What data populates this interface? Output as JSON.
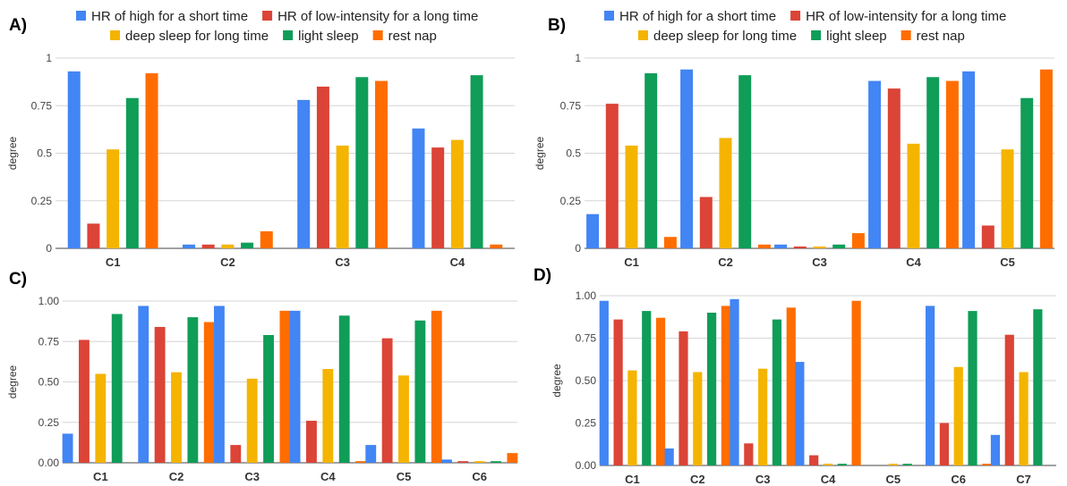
{
  "colors": {
    "HR of high for a short time": "#4285f4",
    "HR of low-intensity for a long time": "#db4437",
    "deep sleep for long time": "#f4b400",
    "light sleep": "#0f9d58",
    "rest nap": "#ff6d00"
  },
  "chart_data": [
    {
      "panel": "A)",
      "type": "bar",
      "ylabel": "degree",
      "ylim": [
        0,
        1
      ],
      "yticks": [
        "0",
        "0.25",
        "0.5",
        "0.75",
        "1"
      ],
      "grid": true,
      "legend": "top",
      "categories": [
        "C1",
        "C2",
        "C3",
        "C4"
      ],
      "series": [
        {
          "name": "HR of high for a short time",
          "values": [
            0.93,
            0.02,
            0.78,
            0.63
          ]
        },
        {
          "name": "HR of low-intensity for a long time",
          "values": [
            0.13,
            0.02,
            0.85,
            0.53
          ]
        },
        {
          "name": "deep sleep for long time",
          "values": [
            0.52,
            0.02,
            0.54,
            0.57
          ]
        },
        {
          "name": "light sleep",
          "values": [
            0.79,
            0.03,
            0.9,
            0.91
          ]
        },
        {
          "name": "rest nap",
          "values": [
            0.92,
            0.09,
            0.88,
            0.02
          ]
        }
      ]
    },
    {
      "panel": "B)",
      "type": "bar",
      "ylabel": "degree",
      "ylim": [
        0,
        1
      ],
      "yticks": [
        "0",
        "0.25",
        "0.5",
        "0.75",
        "1"
      ],
      "grid": true,
      "legend": "top",
      "categories": [
        "C1",
        "C2",
        "C3",
        "C4",
        "C5"
      ],
      "series": [
        {
          "name": "HR of high for a short time",
          "values": [
            0.18,
            0.94,
            0.02,
            0.88,
            0.93
          ]
        },
        {
          "name": "HR of low-intensity for a long time",
          "values": [
            0.76,
            0.27,
            0.01,
            0.84,
            0.12
          ]
        },
        {
          "name": "deep sleep for long time",
          "values": [
            0.54,
            0.58,
            0.01,
            0.55,
            0.52
          ]
        },
        {
          "name": "light sleep",
          "values": [
            0.92,
            0.91,
            0.02,
            0.9,
            0.79
          ]
        },
        {
          "name": "rest nap",
          "values": [
            0.06,
            0.02,
            0.08,
            0.88,
            0.94
          ]
        }
      ]
    },
    {
      "panel": "C)",
      "type": "bar",
      "ylabel": "degree",
      "ylim": [
        0,
        1
      ],
      "yticks": [
        "0.00",
        "0.25",
        "0.50",
        "0.75",
        "1.00"
      ],
      "grid": true,
      "categories": [
        "C1",
        "C2",
        "C3",
        "C4",
        "C5",
        "C6"
      ],
      "series": [
        {
          "name": "HR of high for a short time",
          "values": [
            0.18,
            0.97,
            0.97,
            0.94,
            0.11,
            0.02
          ]
        },
        {
          "name": "HR of low-intensity for a long time",
          "values": [
            0.76,
            0.84,
            0.11,
            0.26,
            0.77,
            0.01
          ]
        },
        {
          "name": "deep sleep for long time",
          "values": [
            0.55,
            0.56,
            0.52,
            0.58,
            0.54,
            0.01
          ]
        },
        {
          "name": "light sleep",
          "values": [
            0.92,
            0.9,
            0.79,
            0.91,
            0.88,
            0.01
          ]
        },
        {
          "name": "rest nap",
          "values": [
            0.0,
            0.87,
            0.94,
            0.01,
            0.94,
            0.06
          ]
        }
      ]
    },
    {
      "panel": "D)",
      "type": "bar",
      "ylabel": "degree",
      "ylim": [
        0,
        1
      ],
      "yticks": [
        "0.00",
        "0.25",
        "0.50",
        "0.75",
        "1.00"
      ],
      "grid": true,
      "categories": [
        "C1",
        "C2",
        "C3",
        "C4",
        "C5",
        "C6",
        "C7"
      ],
      "series": [
        {
          "name": "HR of high for a short time",
          "values": [
            0.97,
            0.1,
            0.98,
            0.61,
            0.0,
            0.94,
            0.18
          ]
        },
        {
          "name": "HR of low-intensity for a long time",
          "values": [
            0.86,
            0.79,
            0.13,
            0.06,
            0.0,
            0.25,
            0.77
          ]
        },
        {
          "name": "deep sleep for long time",
          "values": [
            0.56,
            0.55,
            0.57,
            0.01,
            0.01,
            0.58,
            0.55
          ]
        },
        {
          "name": "light sleep",
          "values": [
            0.91,
            0.9,
            0.86,
            0.01,
            0.01,
            0.91,
            0.92
          ]
        },
        {
          "name": "rest nap",
          "values": [
            0.87,
            0.94,
            0.93,
            0.97,
            0.0,
            0.01,
            0.0
          ]
        }
      ]
    }
  ]
}
